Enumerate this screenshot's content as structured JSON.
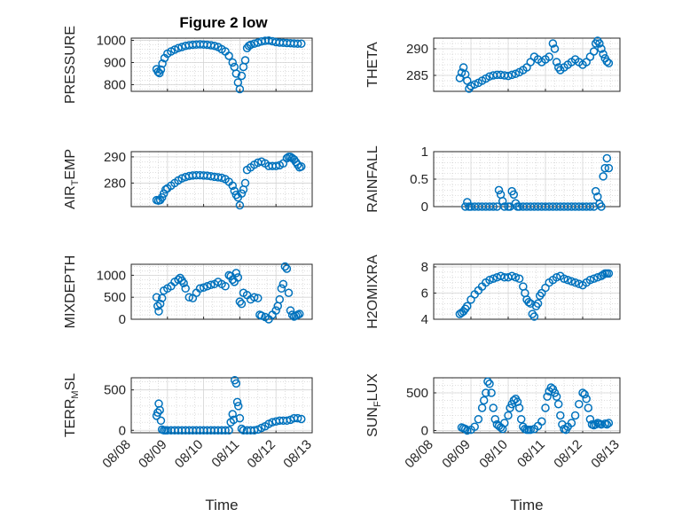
{
  "figure": {
    "title": "Figure 2 low",
    "color": "#0072bd"
  },
  "chart_data": [
    {
      "type": "scatter",
      "ylabel": "PRESSURE",
      "xlabel": "",
      "ylim": [
        770,
        1010
      ],
      "yticks": [
        800,
        900,
        1000
      ],
      "yticklabels": [
        "800",
        "900",
        "1000"
      ],
      "xlim": [
        0,
        5
      ],
      "grid": true,
      "minor_grid": true,
      "x": [
        0.7,
        0.74,
        0.78,
        0.82,
        0.86,
        0.92,
        1.0,
        1.1,
        1.2,
        1.3,
        1.4,
        1.5,
        1.6,
        1.7,
        1.8,
        1.9,
        2.0,
        2.1,
        2.2,
        2.3,
        2.4,
        2.5,
        2.6,
        2.7,
        2.8,
        2.85,
        2.9,
        2.95,
        3.0,
        3.05,
        3.1,
        3.15,
        3.2,
        3.25,
        3.3,
        3.4,
        3.5,
        3.6,
        3.7,
        3.8,
        3.9,
        4.0,
        4.1,
        4.2,
        4.3,
        4.4,
        4.5,
        4.6,
        4.7
      ],
      "y": [
        870,
        858,
        852,
        868,
        895,
        920,
        940,
        950,
        958,
        965,
        970,
        975,
        978,
        980,
        981,
        982,
        981,
        980,
        978,
        975,
        970,
        960,
        950,
        930,
        900,
        880,
        850,
        810,
        780,
        840,
        880,
        910,
        965,
        975,
        980,
        985,
        990,
        995,
        998,
        999,
        996,
        992,
        990,
        989,
        988,
        987,
        986,
        985,
        985
      ]
    },
    {
      "type": "scatter",
      "ylabel": "THETA",
      "xlabel": "",
      "ylim": [
        282,
        292
      ],
      "yticks": [
        285,
        290
      ],
      "yticklabels": [
        "285",
        "290"
      ],
      "xlim": [
        0,
        5
      ],
      "grid": true,
      "minor_grid": true,
      "x": [
        0.7,
        0.75,
        0.8,
        0.85,
        0.9,
        0.95,
        1.0,
        1.1,
        1.2,
        1.3,
        1.4,
        1.5,
        1.6,
        1.7,
        1.8,
        1.9,
        2.0,
        2.1,
        2.2,
        2.3,
        2.4,
        2.5,
        2.6,
        2.7,
        2.8,
        2.9,
        3.0,
        3.1,
        3.2,
        3.25,
        3.3,
        3.35,
        3.4,
        3.5,
        3.6,
        3.7,
        3.8,
        3.9,
        4.0,
        4.1,
        4.2,
        4.3,
        4.35,
        4.4,
        4.45,
        4.5,
        4.55,
        4.6,
        4.65,
        4.7
      ],
      "y": [
        284.5,
        285.5,
        286.5,
        285.2,
        284.0,
        282.5,
        283.0,
        283.3,
        283.6,
        284.0,
        284.4,
        284.8,
        285.0,
        285.1,
        285.1,
        285.0,
        284.9,
        285.1,
        285.3,
        285.6,
        286.0,
        286.5,
        287.5,
        288.5,
        288.0,
        287.5,
        288.0,
        288.5,
        291.0,
        290.0,
        287.5,
        286.5,
        286.0,
        286.5,
        287.0,
        287.5,
        288.0,
        287.5,
        287.0,
        287.5,
        288.5,
        289.5,
        291.0,
        291.5,
        291.0,
        290.0,
        289.0,
        288.2,
        287.6,
        287.3
      ]
    },
    {
      "type": "scatter",
      "ylabel": "AIR_TEMP",
      "xlabel": "",
      "ylim": [
        271,
        292
      ],
      "yticks": [
        280,
        290
      ],
      "yticklabels": [
        "280",
        "290"
      ],
      "xlim": [
        0,
        5
      ],
      "grid": true,
      "minor_grid": true,
      "x": [
        0.7,
        0.75,
        0.8,
        0.85,
        0.9,
        0.95,
        1.0,
        1.1,
        1.2,
        1.3,
        1.4,
        1.5,
        1.6,
        1.7,
        1.8,
        1.9,
        2.0,
        2.1,
        2.2,
        2.3,
        2.4,
        2.5,
        2.6,
        2.7,
        2.8,
        2.85,
        2.9,
        2.95,
        3.0,
        3.05,
        3.1,
        3.15,
        3.2,
        3.3,
        3.4,
        3.5,
        3.6,
        3.7,
        3.8,
        3.9,
        4.0,
        4.1,
        4.2,
        4.3,
        4.35,
        4.4,
        4.45,
        4.5,
        4.55,
        4.6,
        4.65,
        4.7
      ],
      "y": [
        273.5,
        273.3,
        273.5,
        274.5,
        276.0,
        277.5,
        278.0,
        279.0,
        280.0,
        281.0,
        281.8,
        282.3,
        282.7,
        282.9,
        283.0,
        283.0,
        282.9,
        282.8,
        282.6,
        282.4,
        282.2,
        282.0,
        281.5,
        280.5,
        279.0,
        277.0,
        275.5,
        274.5,
        271.5,
        276.0,
        277.5,
        280.0,
        285.0,
        286.0,
        287.0,
        287.8,
        288.2,
        287.5,
        286.5,
        286.5,
        286.5,
        286.8,
        287.5,
        289.5,
        290.0,
        290.0,
        289.5,
        289.0,
        288.0,
        287.0,
        286.0,
        286.3
      ]
    },
    {
      "type": "scatter",
      "ylabel": "RAINFALL",
      "xlabel": "",
      "ylim": [
        0,
        1
      ],
      "yticks": [
        0,
        0.5,
        1
      ],
      "yticklabels": [
        "0",
        "0.5",
        "1"
      ],
      "xlim": [
        0,
        5
      ],
      "grid": true,
      "minor_grid": true,
      "x": [
        0.85,
        0.9,
        0.95,
        1.0,
        1.1,
        1.2,
        1.3,
        1.4,
        1.5,
        1.6,
        1.7,
        1.75,
        1.8,
        1.85,
        1.9,
        2.0,
        2.05,
        2.1,
        2.15,
        2.2,
        2.25,
        2.3,
        2.4,
        2.5,
        2.6,
        2.7,
        2.8,
        2.9,
        3.0,
        3.1,
        3.2,
        3.3,
        3.4,
        3.5,
        3.6,
        3.7,
        3.8,
        3.9,
        4.0,
        4.1,
        4.2,
        4.3,
        4.35,
        4.4,
        4.45,
        4.5,
        4.55,
        4.6,
        4.65,
        4.7
      ],
      "y": [
        0,
        0.08,
        0,
        0,
        0,
        0,
        0,
        0,
        0,
        0,
        0,
        0.3,
        0.22,
        0.1,
        0,
        0,
        0,
        0.28,
        0.22,
        0.06,
        0,
        0,
        0,
        0,
        0,
        0,
        0,
        0,
        0,
        0,
        0,
        0,
        0,
        0,
        0,
        0,
        0,
        0,
        0,
        0,
        0,
        0,
        0.28,
        0.18,
        0.05,
        0,
        0.55,
        0.7,
        0.88,
        0.7
      ]
    },
    {
      "type": "scatter",
      "ylabel": "MIXDEPTH",
      "xlabel": "",
      "ylim": [
        0,
        1250
      ],
      "yticks": [
        0,
        500,
        1000
      ],
      "yticklabels": [
        "0",
        "500",
        "1000"
      ],
      "xlim": [
        0,
        5
      ],
      "grid": true,
      "minor_grid": true,
      "x": [
        0.7,
        0.73,
        0.76,
        0.8,
        0.85,
        0.9,
        1.0,
        1.1,
        1.2,
        1.3,
        1.35,
        1.4,
        1.45,
        1.5,
        1.6,
        1.7,
        1.8,
        1.9,
        2.0,
        2.1,
        2.2,
        2.3,
        2.4,
        2.5,
        2.6,
        2.7,
        2.75,
        2.8,
        2.85,
        2.9,
        2.95,
        3.0,
        3.05,
        3.1,
        3.2,
        3.3,
        3.4,
        3.5,
        3.55,
        3.6,
        3.7,
        3.8,
        3.9,
        4.0,
        4.05,
        4.1,
        4.15,
        4.2,
        4.25,
        4.3,
        4.35,
        4.4,
        4.45,
        4.5,
        4.55,
        4.6,
        4.65
      ],
      "y": [
        500,
        300,
        180,
        350,
        480,
        650,
        700,
        750,
        850,
        900,
        940,
        880,
        820,
        700,
        500,
        480,
        600,
        700,
        720,
        750,
        780,
        800,
        850,
        800,
        750,
        1000,
        980,
        900,
        850,
        1050,
        950,
        400,
        350,
        600,
        550,
        450,
        500,
        480,
        100,
        80,
        50,
        0,
        100,
        200,
        300,
        450,
        700,
        800,
        1200,
        1150,
        600,
        200,
        100,
        60,
        80,
        100,
        120
      ]
    },
    {
      "type": "scatter",
      "ylabel": "H2OMIXRA",
      "xlabel": "",
      "ylim": [
        4,
        8.2
      ],
      "yticks": [
        4,
        6,
        8
      ],
      "yticklabels": [
        "4",
        "6",
        "8"
      ],
      "xlim": [
        0,
        5
      ],
      "grid": true,
      "minor_grid": true,
      "x": [
        0.7,
        0.75,
        0.8,
        0.85,
        0.9,
        1.0,
        1.1,
        1.2,
        1.3,
        1.4,
        1.5,
        1.6,
        1.7,
        1.8,
        1.9,
        2.0,
        2.1,
        2.2,
        2.3,
        2.4,
        2.45,
        2.5,
        2.55,
        2.6,
        2.65,
        2.7,
        2.75,
        2.8,
        2.85,
        2.9,
        3.0,
        3.1,
        3.2,
        3.3,
        3.4,
        3.5,
        3.6,
        3.7,
        3.8,
        3.9,
        4.0,
        4.1,
        4.2,
        4.3,
        4.4,
        4.5,
        4.55,
        4.6,
        4.65,
        4.7
      ],
      "y": [
        4.4,
        4.5,
        4.6,
        4.8,
        5.0,
        5.5,
        5.9,
        6.2,
        6.5,
        6.8,
        7.0,
        7.1,
        7.2,
        7.3,
        7.2,
        7.2,
        7.3,
        7.2,
        7.1,
        6.5,
        6.0,
        5.5,
        5.3,
        5.2,
        4.4,
        4.2,
        5.0,
        5.2,
        5.8,
        6.0,
        6.4,
        6.8,
        7.0,
        7.2,
        7.3,
        7.1,
        7.0,
        6.9,
        6.8,
        6.7,
        6.6,
        6.8,
        7.0,
        7.1,
        7.2,
        7.3,
        7.4,
        7.5,
        7.5,
        7.5
      ]
    },
    {
      "type": "scatter",
      "ylabel": "TERR_MSL",
      "xlabel": "Time",
      "ylim": [
        -30,
        650
      ],
      "yticks": [
        0,
        500
      ],
      "yticklabels": [
        "0",
        "500"
      ],
      "xlim": [
        0,
        5
      ],
      "xticks": [
        0,
        1,
        2,
        3,
        4,
        5
      ],
      "xticklabels": [
        "08/08",
        "08/09",
        "08/10",
        "08/11",
        "08/12",
        "08/13"
      ],
      "grid": true,
      "minor_grid": true,
      "x": [
        0.7,
        0.73,
        0.76,
        0.79,
        0.82,
        0.85,
        0.9,
        0.95,
        1.0,
        1.1,
        1.2,
        1.3,
        1.4,
        1.5,
        1.6,
        1.7,
        1.8,
        1.9,
        2.0,
        2.1,
        2.2,
        2.3,
        2.4,
        2.5,
        2.6,
        2.7,
        2.75,
        2.8,
        2.83,
        2.86,
        2.9,
        2.93,
        2.96,
        3.0,
        3.05,
        3.1,
        3.2,
        3.3,
        3.4,
        3.5,
        3.6,
        3.7,
        3.8,
        3.9,
        4.0,
        4.1,
        4.2,
        4.3,
        4.4,
        4.5,
        4.6,
        4.7
      ],
      "y": [
        180,
        220,
        330,
        250,
        120,
        10,
        0,
        0,
        0,
        0,
        0,
        0,
        0,
        0,
        0,
        0,
        0,
        0,
        0,
        0,
        0,
        0,
        0,
        0,
        0,
        0,
        100,
        200,
        130,
        620,
        580,
        350,
        300,
        150,
        20,
        0,
        0,
        0,
        0,
        10,
        30,
        50,
        80,
        100,
        110,
        120,
        120,
        120,
        130,
        150,
        150,
        140
      ]
    },
    {
      "type": "scatter",
      "ylabel": "SUN_FLUX",
      "xlabel": "Time",
      "ylim": [
        -30,
        700
      ],
      "yticks": [
        0,
        500
      ],
      "yticklabels": [
        "0",
        "500"
      ],
      "xlim": [
        0,
        5
      ],
      "xticks": [
        0,
        1,
        2,
        3,
        4,
        5
      ],
      "xticklabels": [
        "08/08",
        "08/09",
        "08/10",
        "08/11",
        "08/12",
        "08/13"
      ],
      "grid": true,
      "minor_grid": true,
      "x": [
        0.75,
        0.8,
        0.85,
        0.9,
        1.0,
        1.1,
        1.2,
        1.3,
        1.35,
        1.4,
        1.45,
        1.5,
        1.55,
        1.6,
        1.65,
        1.7,
        1.75,
        1.8,
        1.85,
        1.9,
        2.0,
        2.05,
        2.1,
        2.15,
        2.2,
        2.25,
        2.3,
        2.35,
        2.4,
        2.45,
        2.5,
        2.55,
        2.6,
        2.7,
        2.8,
        2.9,
        3.0,
        3.05,
        3.1,
        3.15,
        3.2,
        3.25,
        3.3,
        3.35,
        3.4,
        3.45,
        3.5,
        3.55,
        3.6,
        3.7,
        3.8,
        3.9,
        4.0,
        4.05,
        4.1,
        4.15,
        4.2,
        4.25,
        4.3,
        4.35,
        4.4,
        4.45,
        4.5,
        4.6,
        4.65,
        4.7
      ],
      "y": [
        40,
        30,
        20,
        0,
        10,
        50,
        150,
        300,
        400,
        500,
        650,
        620,
        500,
        300,
        150,
        80,
        60,
        40,
        20,
        100,
        200,
        300,
        350,
        400,
        420,
        380,
        300,
        150,
        50,
        20,
        10,
        10,
        10,
        20,
        60,
        120,
        300,
        450,
        520,
        570,
        550,
        500,
        450,
        350,
        200,
        80,
        20,
        10,
        50,
        100,
        200,
        350,
        500,
        480,
        420,
        300,
        150,
        80,
        70,
        80,
        100,
        90,
        80,
        90,
        80,
        100
      ]
    }
  ]
}
